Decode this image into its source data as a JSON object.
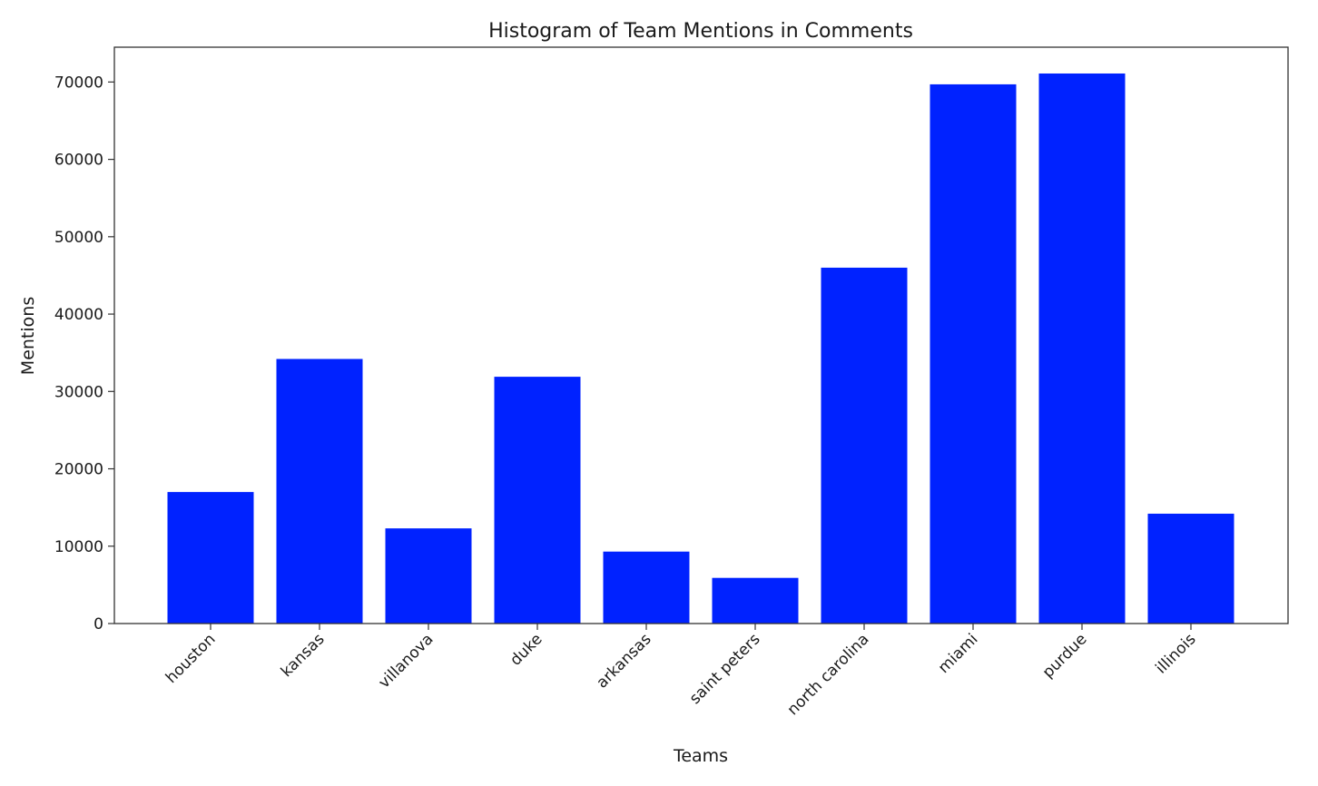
{
  "chart_data": {
    "type": "bar",
    "title": "Histogram of Team Mentions in Comments",
    "xlabel": "Teams",
    "ylabel": "Mentions",
    "categories": [
      "houston",
      "kansas",
      "villanova",
      "duke",
      "arkansas",
      "saint peters",
      "north carolina",
      "miami",
      "purdue",
      "illinois"
    ],
    "values": [
      17000,
      34200,
      12300,
      31900,
      9300,
      5900,
      46000,
      69700,
      71100,
      14200
    ],
    "ylim": [
      0,
      74500
    ],
    "yticks": [
      0,
      10000,
      20000,
      30000,
      40000,
      50000,
      60000,
      70000
    ],
    "ytick_labels": [
      "0",
      "10000",
      "20000",
      "30000",
      "40000",
      "50000",
      "60000",
      "70000"
    ],
    "bar_color": "#0022ff",
    "grid": false,
    "legend": "none"
  }
}
